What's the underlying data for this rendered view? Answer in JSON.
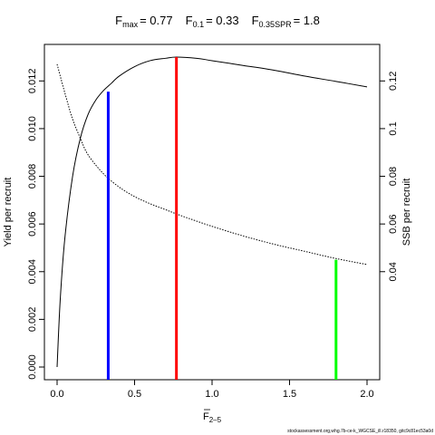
{
  "title": {
    "fmax_label": "F",
    "fmax_sub": "max",
    "fmax_value": "= 0.77",
    "f01_label": "F",
    "f01_sub": "0.1",
    "f01_value": "= 0.33",
    "fspr_label": "F",
    "fspr_sub": "0.35SPR",
    "fspr_value": "= 1.8"
  },
  "footer": "stockassessment.org,whg.7b-ce-k_WGCSE_ill.r18350, gitc9c81ec53a0d",
  "chart_data": {
    "type": "line",
    "xlabel_main": "F",
    "xlabel_sub": "2–5",
    "ylabel_left": "Yield per recruit",
    "ylabel_right": "SSB per recruit",
    "xlim": [
      0,
      2
    ],
    "ylim_left": [
      0,
      0.013
    ],
    "ylim_right": [
      0,
      0.13
    ],
    "x_ticks": [
      0,
      0.5,
      1.0,
      1.5,
      2.0
    ],
    "x_tick_labels": [
      "0.0",
      "0.5",
      "1.0",
      "1.5",
      "2.0"
    ],
    "y_left_ticks": [
      0,
      0.002,
      0.004,
      0.006,
      0.008,
      0.01,
      0.012
    ],
    "y_left_tick_labels": [
      "0.000",
      "0.002",
      "0.004",
      "0.006",
      "0.008",
      "0.010",
      "0.012"
    ],
    "y_right_ticks": [
      0.04,
      0.06,
      0.08,
      0.1,
      0.12
    ],
    "y_right_tick_labels": [
      "0.04",
      "0.06",
      "0.08",
      "0.1",
      "0.12"
    ],
    "grid": false,
    "series": [
      {
        "axis": "left",
        "style": "solid",
        "color": "#000000",
        "x": [
          0,
          0.02,
          0.05,
          0.1,
          0.15,
          0.2,
          0.25,
          0.3,
          0.35,
          0.4,
          0.5,
          0.6,
          0.7,
          0.77,
          0.9,
          1.0,
          1.2,
          1.4,
          1.6,
          1.8,
          2.0
        ],
        "y": [
          0,
          0.0028,
          0.0054,
          0.008,
          0.0096,
          0.0106,
          0.0112,
          0.0116,
          0.0119,
          0.0122,
          0.0126,
          0.01285,
          0.01295,
          0.013,
          0.01295,
          0.01285,
          0.01265,
          0.01245,
          0.0122,
          0.01198,
          0.01175
        ]
      },
      {
        "axis": "right",
        "style": "dotted",
        "color": "#000000",
        "x": [
          0,
          0.05,
          0.1,
          0.15,
          0.2,
          0.3,
          0.4,
          0.5,
          0.6,
          0.7,
          0.8,
          1.0,
          1.2,
          1.4,
          1.6,
          1.8,
          2.0
        ],
        "y": [
          0.127,
          0.115,
          0.104,
          0.096,
          0.089,
          0.081,
          0.0755,
          0.0715,
          0.0685,
          0.066,
          0.0635,
          0.059,
          0.055,
          0.0515,
          0.0485,
          0.0455,
          0.043
        ]
      }
    ],
    "reference_lines": [
      {
        "name": "F0.1",
        "x": 0.33,
        "y": 0.01155,
        "color": "#0000ff"
      },
      {
        "name": "Fmax",
        "x": 0.77,
        "y": 0.013,
        "color": "#ff0000"
      },
      {
        "name": "F0.35SPR",
        "x": 1.8,
        "y": 0.0045,
        "color": "#00ff00"
      }
    ]
  }
}
